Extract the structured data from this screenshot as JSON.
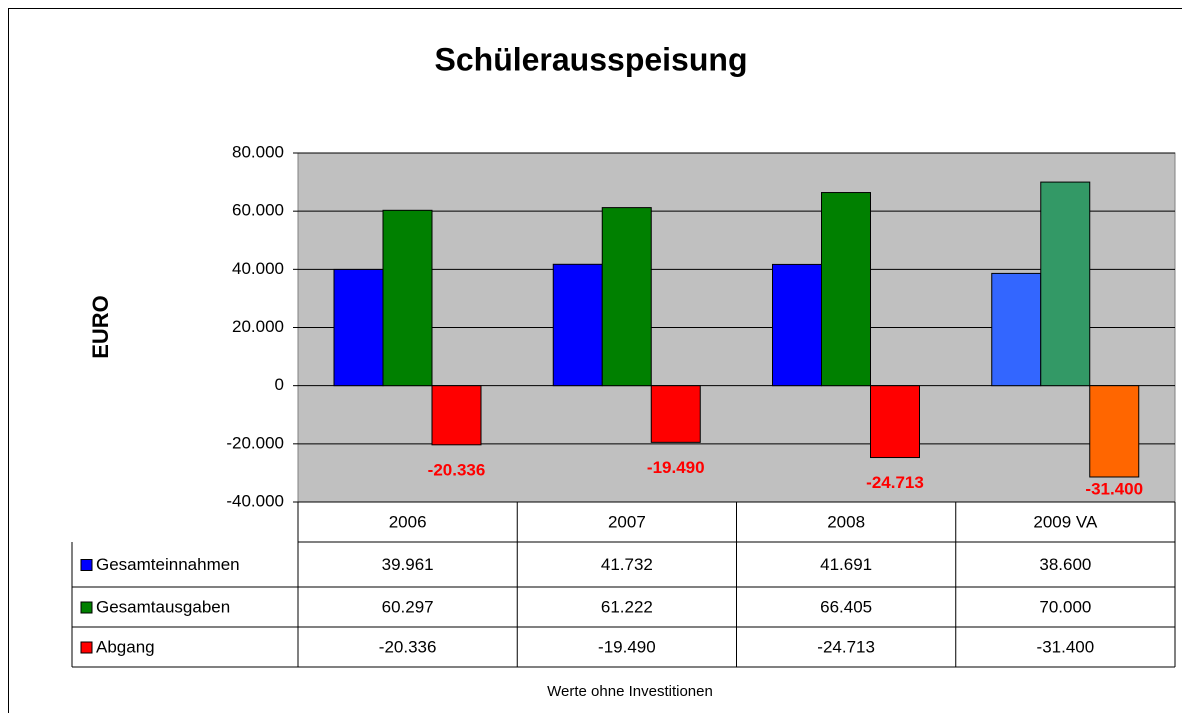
{
  "chart_data": {
    "type": "bar",
    "title": "Schülerausspeisung",
    "y_label": "EURO",
    "annotation": "Werte ohne Investitionen",
    "categories": [
      "2006",
      "2007",
      "2008",
      "2009 VA"
    ],
    "series": [
      {
        "name": "Gesamteinnahmen",
        "color": "#0000ff",
        "colors": [
          "#0000ff",
          "#0000ff",
          "#0000ff",
          "#3366ff"
        ],
        "values": [
          39961,
          41732,
          41691,
          38600
        ],
        "value_labels": [
          "39.961",
          "41.732",
          "41.691",
          "38.600"
        ]
      },
      {
        "name": "Gesamtausgaben",
        "color": "#008000",
        "colors": [
          "#008000",
          "#008000",
          "#008000",
          "#339966"
        ],
        "values": [
          60297,
          61222,
          66405,
          70000
        ],
        "value_labels": [
          "60.297",
          "61.222",
          "66.405",
          "70.000"
        ]
      },
      {
        "name": "Abgang",
        "color": "#ff0000",
        "colors": [
          "#ff0000",
          "#ff0000",
          "#ff0000",
          "#ff6600"
        ],
        "values": [
          -20336,
          -19490,
          -24713,
          -31400
        ],
        "value_labels": [
          "-20.336",
          "-19.490",
          "-24.713",
          "-31.400"
        ],
        "data_labels": true
      }
    ],
    "ylim": [
      -40000,
      80000
    ],
    "yticks": [
      {
        "value": -40000,
        "label": "-40.000"
      },
      {
        "value": -20000,
        "label": "-20.000"
      },
      0,
      {
        "value": 20000,
        "label": "20.000"
      },
      {
        "value": 40000,
        "label": "40.000"
      },
      {
        "value": 60000,
        "label": "60.000"
      },
      {
        "value": 80000,
        "label": "80.000"
      }
    ],
    "grid": true,
    "data_table": true
  }
}
